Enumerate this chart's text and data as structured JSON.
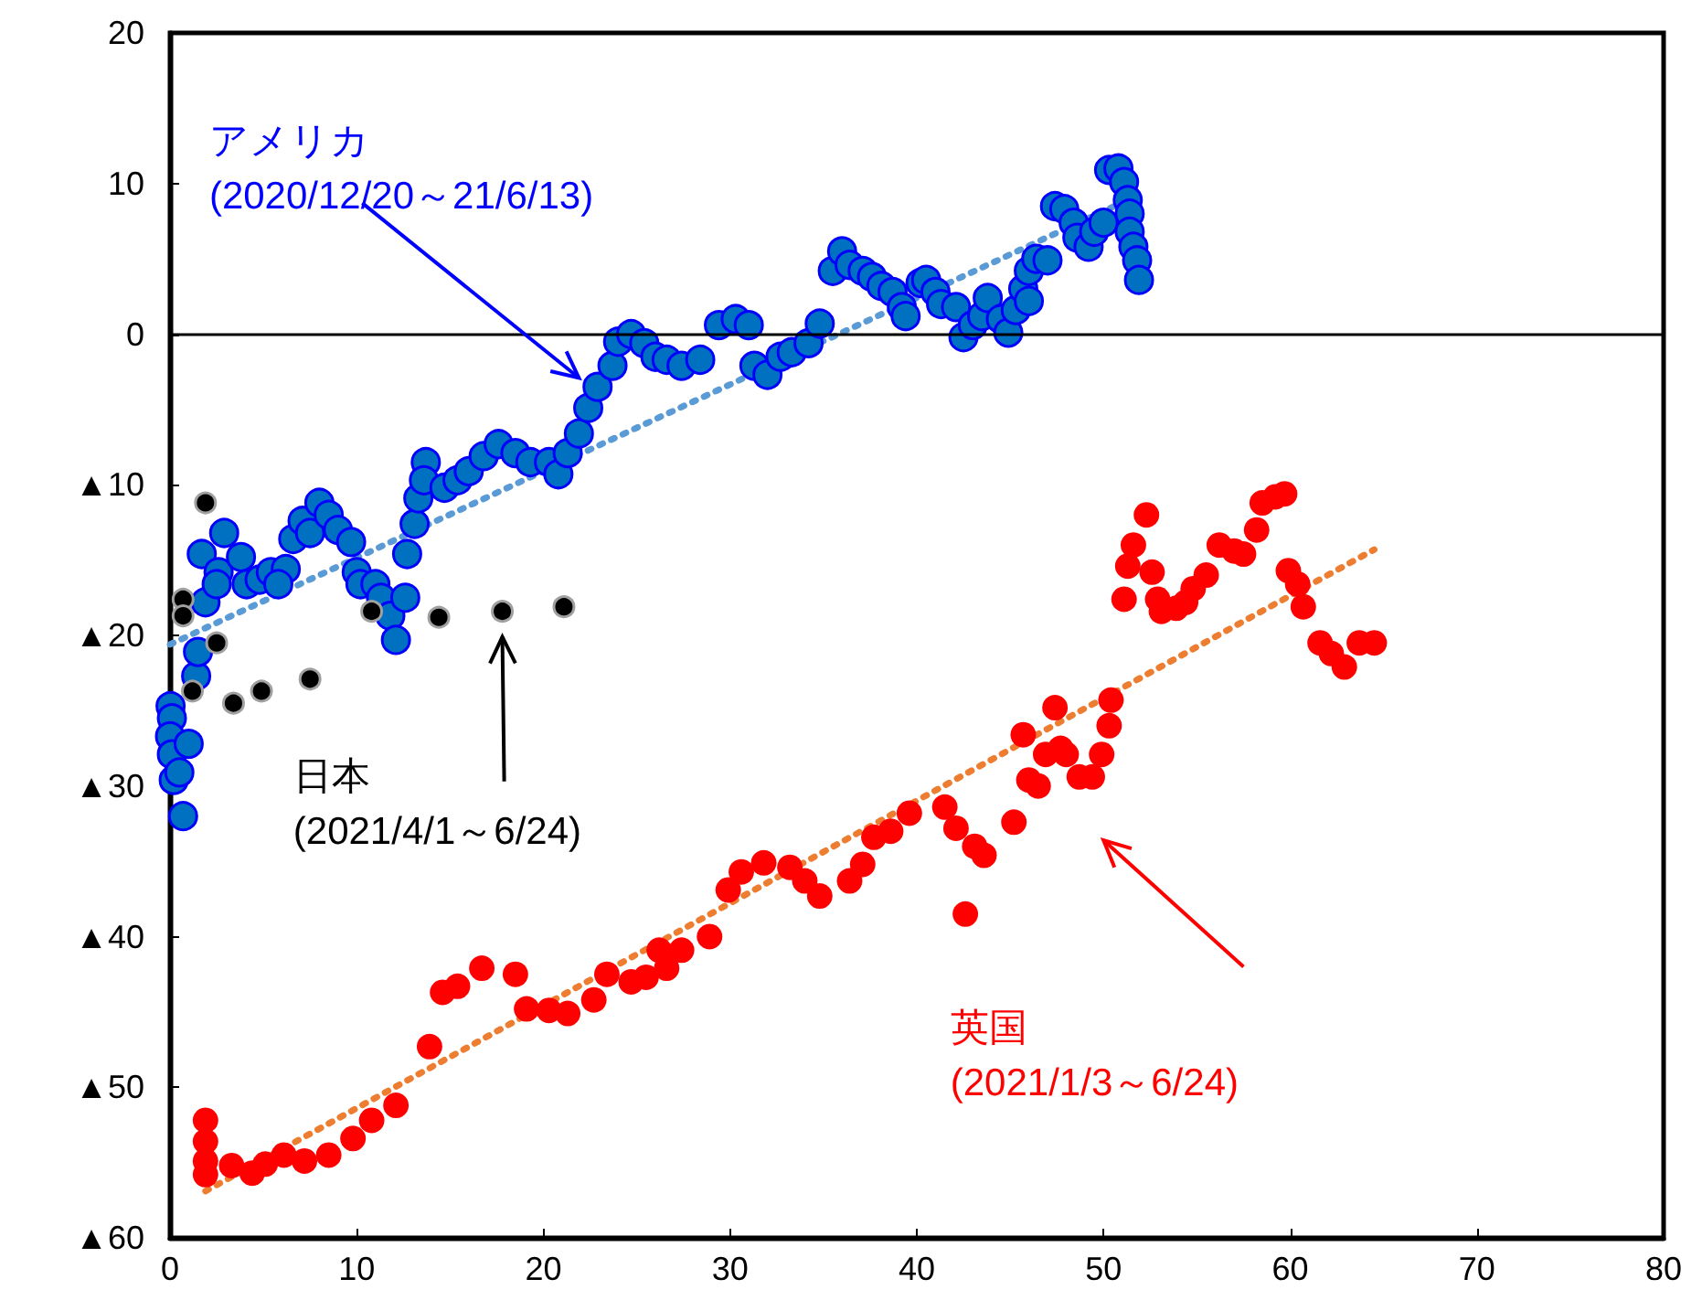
{
  "chart_data": {
    "type": "scatter",
    "xlim": [
      0,
      80
    ],
    "xticks": [
      0,
      10,
      20,
      30,
      40,
      50,
      60,
      70,
      80
    ],
    "ylim": [
      -60,
      20
    ],
    "yticks": [
      20,
      10,
      0,
      {
        "value": -10,
        "label": "▲10"
      },
      {
        "value": -20,
        "label": "▲20"
      },
      {
        "value": -30,
        "label": "▲30"
      },
      {
        "value": -40,
        "label": "▲40"
      },
      {
        "value": -50,
        "label": "▲50"
      },
      {
        "value": -60,
        "label": "▲60"
      }
    ],
    "grid": false,
    "legend": false,
    "marker": "circle",
    "ref_lines": [
      {
        "axis": "y",
        "value": 0,
        "color": "#000000"
      }
    ],
    "series": [
      {
        "name": "アメリカ\n(2020/12/20～21/6/13)",
        "color": "#0070c0",
        "x": [
          0.03,
          0.1,
          0,
          0.1,
          0.2,
          0.5,
          0.7,
          1,
          1.4,
          1.5,
          1.9,
          1.7,
          2.6,
          2.5,
          2.9,
          3.8,
          4.1,
          4.8,
          5.4,
          6.2,
          5.8,
          6.6,
          7.1,
          7.5,
          8,
          8.5,
          9,
          9.7,
          10,
          10.2,
          11,
          11.3,
          11.8,
          12.1,
          12.6,
          12.7,
          13.1,
          13.3,
          13.7,
          13.6,
          14.7,
          15.4,
          16,
          16.8,
          17.6,
          18.5,
          19.3,
          20.3,
          20.8,
          21.3,
          21.9,
          22.4,
          22.9,
          23.7,
          24,
          24.7,
          25.4,
          26,
          26.6,
          27.4,
          28.4,
          29.4,
          30.3,
          31,
          31.3,
          32,
          32.7,
          33.3,
          34.2,
          34.8,
          35.5,
          36,
          36.4,
          37.1,
          37.6,
          38.1,
          38.7,
          39.2,
          39.4,
          40.2,
          40.5,
          41,
          41.3,
          42.1,
          42.5,
          43,
          43.5,
          43.8,
          44.5,
          44.9,
          45.3,
          45.7,
          46,
          46,
          46.4,
          47,
          47.4,
          47.9,
          48.4,
          48.6,
          49.2,
          49.5,
          50,
          50.3,
          50.8,
          51.1,
          51.3,
          51.4,
          51.4,
          51.6,
          51.8,
          51.9
        ],
        "values": [
          -24.7,
          -25.5,
          -26.7,
          -27.9,
          -29.6,
          -29.1,
          -32,
          -27.2,
          -22.7,
          -21.1,
          -17.8,
          -14.6,
          -15.8,
          -16.6,
          -13.2,
          -14.8,
          -16.6,
          -16.3,
          -15.8,
          -15.6,
          -16.6,
          -13.6,
          -12.4,
          -13.2,
          -11.2,
          -12,
          -13,
          -13.8,
          -15.8,
          -16.6,
          -16.6,
          -17.5,
          -18.7,
          -20.3,
          -17.5,
          -14.6,
          -12.6,
          -10.9,
          -8.5,
          -9.7,
          -10.2,
          -9.7,
          -9.1,
          -8.1,
          -7.3,
          -7.9,
          -8.5,
          -8.5,
          -9.3,
          -7.9,
          -6.6,
          -4.9,
          -3.5,
          -2.1,
          -0.5,
          0,
          -0.6,
          -1.5,
          -1.7,
          -2.1,
          -1.7,
          0.6,
          1,
          0.6,
          -2.1,
          -2.7,
          -1.5,
          -1.2,
          -0.6,
          0.7,
          4.2,
          5.5,
          4.6,
          4.2,
          3.8,
          3.2,
          2.8,
          1.8,
          1.2,
          3.4,
          3.6,
          2.8,
          2,
          1.8,
          -0.2,
          0.6,
          1.2,
          2.4,
          1,
          0.1,
          1.6,
          3,
          2.2,
          4.2,
          5,
          4.9,
          8.5,
          8.3,
          7.4,
          6.4,
          5.8,
          6.8,
          7.4,
          10.9,
          11,
          10.1,
          8.9,
          8,
          6.8,
          5.8,
          4.9,
          3.6
        ]
      },
      {
        "name": "日本\n(2021/4/1～6/24)",
        "color": "#000000",
        "x": [
          0.7,
          0.7,
          1.2,
          2.5,
          1.9,
          3.4,
          4.9,
          7.5,
          10.8,
          14.4,
          17.8,
          21.1
        ],
        "values": [
          -17.6,
          -18.7,
          -23.7,
          -20.5,
          -11.2,
          -24.5,
          -23.7,
          -22.9,
          -18.4,
          -18.8,
          -18.4,
          -18.1
        ]
      },
      {
        "name": "英国\n(2021/1/3～6/24)",
        "color": "#ff0000",
        "x": [
          1.9,
          1.9,
          1.9,
          1.9,
          3.3,
          4.4,
          5.1,
          6.1,
          7.2,
          8.5,
          9.8,
          10.8,
          12.1,
          13.9,
          14.6,
          15.4,
          16.7,
          18.5,
          19.1,
          20.3,
          21.3,
          22.7,
          23.4,
          24.7,
          25.5,
          26.6,
          26.2,
          27.4,
          28.9,
          29.9,
          30.6,
          31.8,
          33.2,
          34,
          34.8,
          36.4,
          37.1,
          37.7,
          38.6,
          39.6,
          41.5,
          42.1,
          42.6,
          43.1,
          43.6,
          45.2,
          45.7,
          46,
          46.5,
          46.9,
          47.4,
          47.7,
          48,
          48.7,
          49.4,
          49.9,
          50.3,
          50.4,
          51.1,
          51.3,
          51.6,
          52.3,
          52.6,
          52.9,
          53.1,
          53.9,
          54.4,
          54.8,
          55.5,
          56.2,
          57,
          57.5,
          58.2,
          58.5,
          59.2,
          59.7,
          59.9,
          60.4,
          60.7,
          61.6,
          62.2,
          62.9,
          63.7,
          64.5
        ],
        "values": [
          -52.2,
          -53.6,
          -54.9,
          -55.8,
          -55.2,
          -55.7,
          -55.1,
          -54.5,
          -54.9,
          -54.5,
          -53.4,
          -52.2,
          -51.2,
          -47.3,
          -43.7,
          -43.3,
          -42.1,
          -42.5,
          -44.8,
          -44.9,
          -45.1,
          -44.2,
          -42.5,
          -43,
          -42.7,
          -42.1,
          -40.9,
          -40.9,
          -40,
          -36.9,
          -35.7,
          -35.1,
          -35.4,
          -36.3,
          -37.3,
          -36.3,
          -35.2,
          -33.4,
          -33,
          -31.8,
          -31.4,
          -32.8,
          -38.5,
          -34,
          -34.6,
          -32.4,
          -26.6,
          -29.6,
          -30,
          -27.9,
          -24.8,
          -27.5,
          -27.9,
          -29.4,
          -29.4,
          -27.9,
          -26,
          -24.3,
          -17.6,
          -15.4,
          -14,
          -12,
          -15.8,
          -17.6,
          -18.4,
          -18.2,
          -17.8,
          -16.9,
          -16,
          -14,
          -14.4,
          -14.6,
          -13,
          -11.2,
          -10.8,
          -10.6,
          -15.7,
          -16.6,
          -18.1,
          -20.5,
          -21.2,
          -22.1,
          -20.5,
          -20.5
        ]
      },
      {
        "type": "line",
        "color": "#5b9bd5",
        "line_style": "dotted",
        "marker": "none",
        "x": [
          0,
          51.8
        ],
        "values": [
          -20.6,
          9.2
        ]
      },
      {
        "type": "line",
        "color": "#ed7d31",
        "line_style": "dotted",
        "marker": "none",
        "x": [
          1.9,
          64.5
        ],
        "values": [
          -56.9,
          -14.3
        ]
      }
    ]
  }
}
